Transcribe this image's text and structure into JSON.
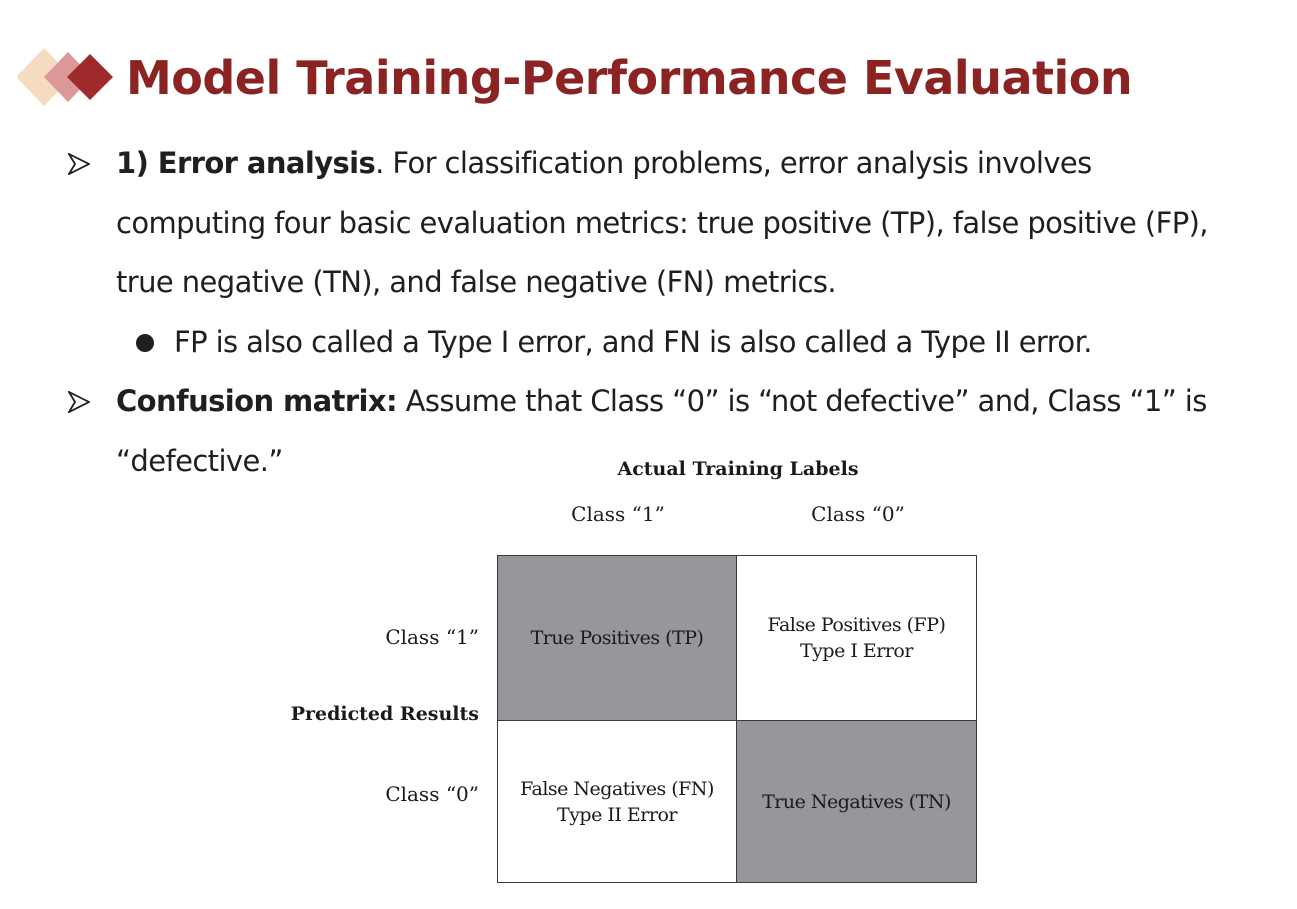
{
  "slide": {
    "title": "Model Training-Performance Evaluation"
  },
  "bullets": {
    "error_analysis": {
      "lead": "1) Error analysis",
      "text": ". For classification problems, error analysis involves computing four basic evaluation metrics: true positive (TP), false positive (FP), true negative (TN), and false negative (FN) metrics."
    },
    "sub_bullet": "FP is also called a Type I error, and FN is also called a Type II error.",
    "confusion_matrix": {
      "lead": "Confusion matrix:",
      "text": " Assume that Class “0” is “not defective” and, Class “1” is “defective.”"
    }
  },
  "matrix": {
    "actual_header": "Actual Training Labels",
    "actual_col1": "Class “1”",
    "actual_col2": "Class “0”",
    "predicted_header": "Predicted Results",
    "pred_row1": "Class “1”",
    "pred_row2": "Class “0”",
    "tp": "True Positives (TP)",
    "fp_line1": "False Positives (FP)",
    "fp_line2": "Type I Error",
    "fn_line1": "False Negatives (FN)",
    "fn_line2": "Type II Error",
    "tn": "True Negatives (TN)",
    "dark_color": "#96979a"
  },
  "colors": {
    "title": "#8b2323",
    "logo_light": "#f5dcc0",
    "logo_mid": "#d98a8a",
    "logo_dark": "#9e2a2b"
  },
  "icons": {
    "logo": "layered-diamonds-icon",
    "bullet": "arrowhead-bullet-icon",
    "sub_bullet": "filled-circle-bullet-icon"
  }
}
